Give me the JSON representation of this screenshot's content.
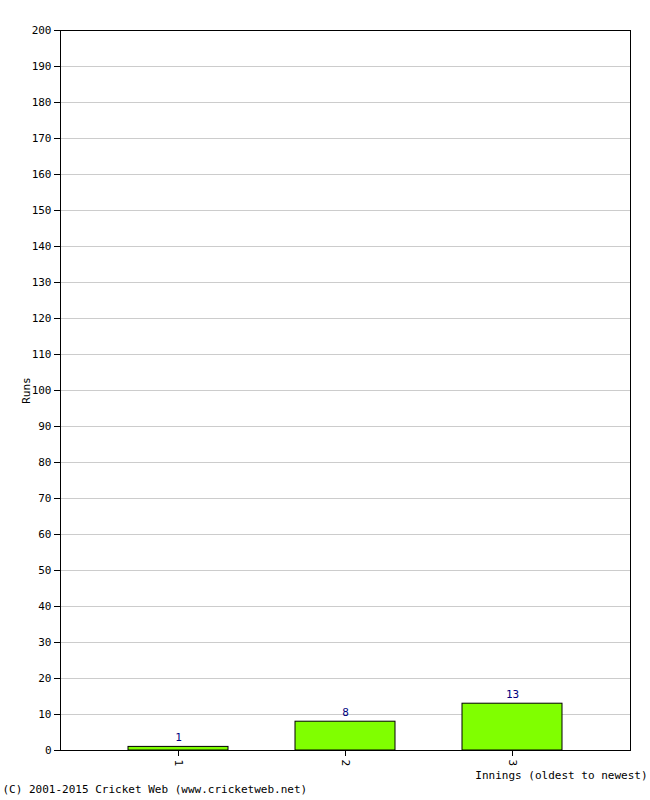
{
  "chart_data": {
    "type": "bar",
    "categories": [
      "1",
      "2",
      "3"
    ],
    "values": [
      1,
      8,
      13
    ],
    "color": "#80ff00",
    "x_label": "Innings (oldest to newest)",
    "y_label": "Runs",
    "caption": "(C) 2001-2015 Cricket Web (www.cricketweb.net)",
    "ylim": [
      0,
      200
    ],
    "yticks": [
      0,
      10,
      20,
      30,
      40,
      50,
      60,
      70,
      80,
      90,
      100,
      110,
      120,
      130,
      140,
      150,
      160,
      170,
      180,
      190,
      200
    ],
    "grid": true,
    "data_labels": true
  }
}
